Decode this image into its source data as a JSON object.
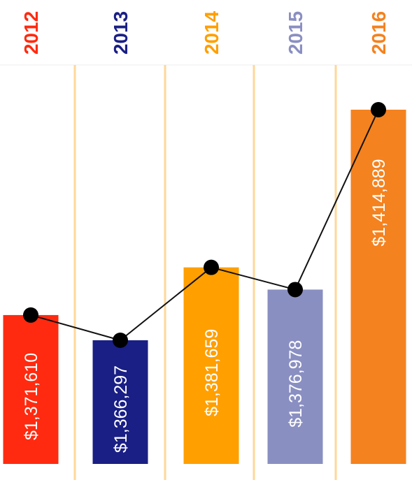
{
  "chart_data": {
    "type": "bar",
    "categories": [
      "2012",
      "2013",
      "2014",
      "2015",
      "2016"
    ],
    "values": [
      1371610,
      1366297,
      1381659,
      1376978,
      1414889
    ],
    "value_labels": [
      "$1,371,610",
      "$1,366,297",
      "$1,381,659",
      "$1,376,978",
      "$1,414,889"
    ],
    "bar_colors": [
      "#ff2a0f",
      "#1a1f85",
      "#ff9f00",
      "#8a8fc2",
      "#f4821f"
    ],
    "label_colors": [
      "#ff2a0f",
      "#1a1f85",
      "#ff9f00",
      "#8a8fc2",
      "#f4821f"
    ],
    "overlay": "line",
    "line_color": "#111111",
    "divider_color": "#ffd79a",
    "title": "",
    "xlabel": "",
    "ylabel": ""
  }
}
